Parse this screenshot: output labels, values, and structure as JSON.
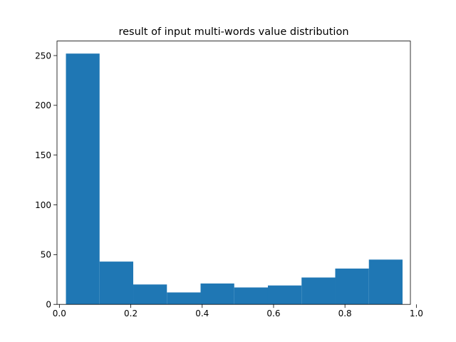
{
  "chart_data": {
    "type": "bar",
    "title": "result of input multi-words value distribution",
    "xlabel": "",
    "ylabel": "",
    "xlim": [
      -0.0067,
      0.9833
    ],
    "ylim": [
      0,
      264.6
    ],
    "xticks": [
      0.0,
      0.2,
      0.4,
      0.6,
      0.8,
      1.0
    ],
    "xtick_labels": [
      "0.0",
      "0.2",
      "0.4",
      "0.6",
      "0.8",
      "1.0"
    ],
    "yticks": [
      0,
      50,
      100,
      150,
      200,
      250
    ],
    "ytick_labels": [
      "0",
      "50",
      "100",
      "150",
      "200",
      "250"
    ],
    "bin_edges": [
      0.0183,
      0.1126,
      0.2069,
      0.3012,
      0.3955,
      0.4898,
      0.5841,
      0.6784,
      0.7727,
      0.867,
      0.9613
    ],
    "counts": [
      252,
      43,
      20,
      12,
      21,
      17,
      19,
      27,
      36,
      45
    ],
    "color": "#1f77b4",
    "grid": false,
    "legend": "none"
  }
}
